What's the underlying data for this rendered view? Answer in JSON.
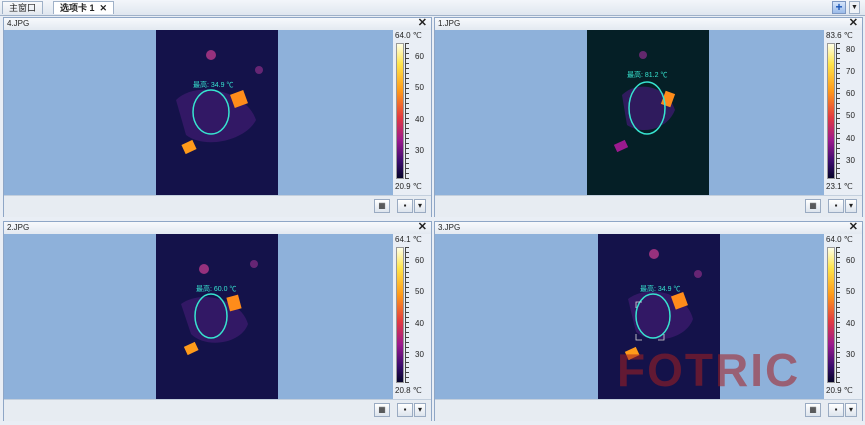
{
  "tabs": [
    {
      "label": "主窗口"
    },
    {
      "label": "选项卡 1",
      "close": "✕"
    }
  ],
  "tabbar": {
    "add_icon": "plus-icon",
    "dropdown_icon": "chevron-down-icon"
  },
  "panels": [
    {
      "title": "4.JPG",
      "max": "64.0 ℃",
      "min": "20.9 ℃",
      "ticks": [
        "60",
        "50",
        "40",
        "30"
      ],
      "label": "最高: 34.9 ℃",
      "bg": "#14124a"
    },
    {
      "title": "1.JPG",
      "max": "83.6 ℃",
      "min": "23.1 ℃",
      "ticks": [
        "80",
        "70",
        "60",
        "50",
        "40",
        "30"
      ],
      "label": "最高: 81.2 ℃",
      "bg": "#051f26"
    },
    {
      "title": "2.JPG",
      "max": "64.1 ℃",
      "min": "20.8 ℃",
      "ticks": [
        "60",
        "50",
        "40",
        "30"
      ],
      "label": "最高: 60.0 ℃",
      "bg": "#14124a"
    },
    {
      "title": "3.JPG",
      "max": "64.0 ℃",
      "min": "20.9 ℃",
      "ticks": [
        "60",
        "50",
        "40",
        "30"
      ],
      "label": "最高: 34.9 ℃",
      "bg": "#14124a"
    }
  ],
  "panel_close": "✕",
  "watermark": "FOTRIC"
}
